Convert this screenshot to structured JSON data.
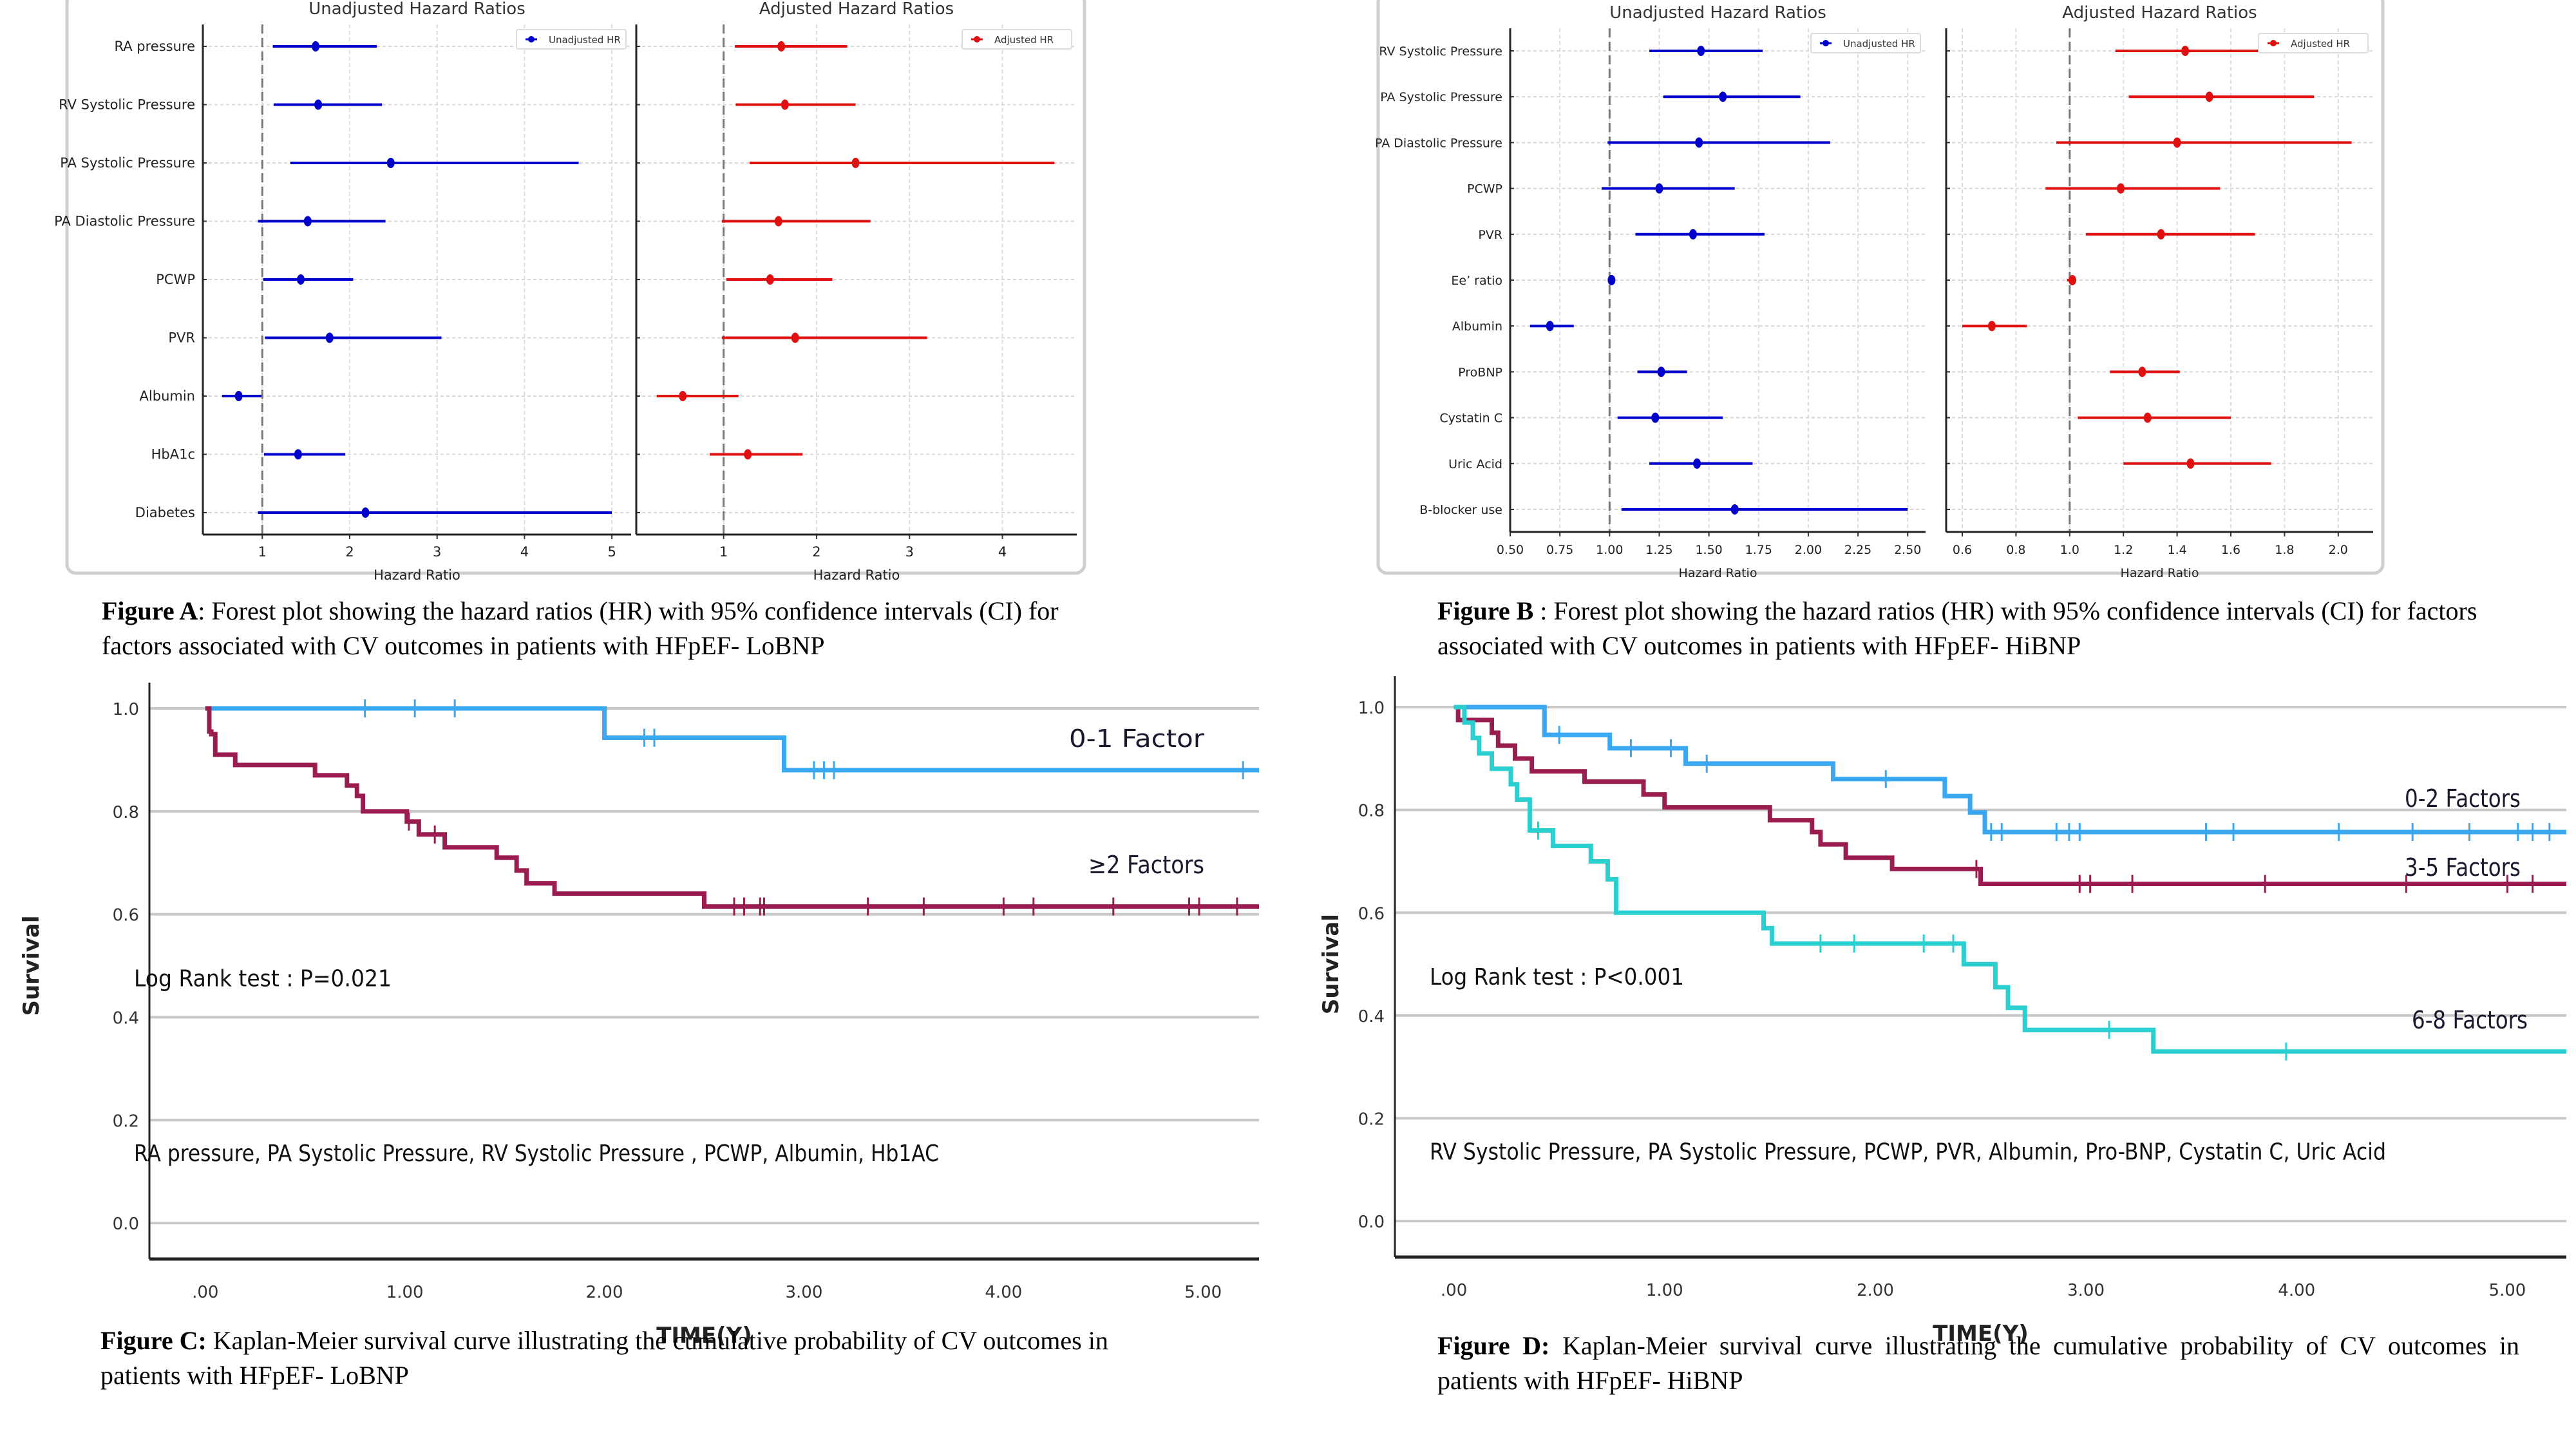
{
  "captions": {
    "A": {
      "label": "Figure A",
      "text": ": Forest plot showing the hazard ratios (HR) with 95% confidence intervals (CI) for factors associated with CV outcomes  in patients with HFpEF- LoBNP"
    },
    "B": {
      "label": "Figure B",
      "text": " : Forest plot showing the hazard ratios (HR) with 95% confidence intervals (CI) for factors associated with CV outcomes  in patients with HFpEF- HiBNP"
    },
    "C": {
      "label": "Figure C:",
      "text": " Kaplan-Meier survival curve illustrating the cumulative probability of CV outcomes in patients with HFpEF- LoBNP"
    },
    "D": {
      "label": "Figure D:",
      "text": " Kaplan-Meier survival curve illustrating the cumulative probability of CV outcomes in patients with HFpEF- HiBNP"
    }
  },
  "colors": {
    "unadjusted": "#0000cc",
    "adjusted": "#e01010",
    "blue_curve": "#3aa8f0",
    "maroon_curve": "#9b1c4e",
    "teal_curve": "#2ccfcf"
  },
  "chart_data": [
    {
      "id": "A-unadjusted",
      "type": "forest",
      "title": "Unadjusted Hazard Ratios",
      "xlabel": "Hazard Ratio",
      "legend": "Unadjusted HR",
      "legend_position": "top-right",
      "xlim": [
        0.32,
        5.22
      ],
      "xticks": [
        "1",
        "2",
        "3",
        "4",
        "5"
      ],
      "xtick_values": [
        1,
        2,
        3,
        4,
        5
      ],
      "reference_line": 1,
      "categories": [
        "RA pressure",
        "RV Systolic Pressure",
        "PA Systolic Pressure",
        "PA Diastolic Pressure",
        "PCWP",
        "PVR",
        "Albumin",
        "HbA1c",
        "Diabetes"
      ],
      "hr": [
        1.61,
        1.64,
        2.47,
        1.52,
        1.44,
        1.77,
        0.73,
        1.41,
        2.18
      ],
      "lower": [
        1.12,
        1.13,
        1.32,
        0.95,
        1.01,
        1.03,
        0.54,
        1.02,
        0.95
      ],
      "upper": [
        2.31,
        2.37,
        4.62,
        2.41,
        2.04,
        3.05,
        0.99,
        1.95,
        5.0
      ]
    },
    {
      "id": "A-adjusted",
      "type": "forest",
      "title": "Adjusted Hazard Ratios",
      "xlabel": "Hazard Ratio",
      "legend": "Adjusted HR",
      "legend_position": "top-right",
      "xlim": [
        0.06,
        4.8
      ],
      "xticks": [
        "1",
        "2",
        "3",
        "4"
      ],
      "xtick_values": [
        1,
        2,
        3,
        4
      ],
      "reference_line": 1,
      "categories": [
        "RA pressure",
        "RV Systolic Pressure",
        "PA Systolic Pressure",
        "PA Diastolic Pressure",
        "PCWP",
        "PVR",
        "Albumin",
        "HbA1c",
        "Diabetes"
      ],
      "hr": [
        1.62,
        1.66,
        2.42,
        1.59,
        1.5,
        1.77,
        0.56,
        1.26,
        null
      ],
      "lower": [
        1.12,
        1.13,
        1.28,
        0.98,
        1.03,
        0.98,
        0.28,
        0.85,
        null
      ],
      "upper": [
        2.33,
        2.42,
        4.56,
        2.58,
        2.17,
        3.19,
        1.16,
        1.85,
        null
      ]
    },
    {
      "id": "B-unadjusted",
      "type": "forest",
      "title": "Unadjusted Hazard Ratios",
      "xlabel": "Hazard Ratio",
      "legend": "Unadjusted HR",
      "legend_position": "top-right",
      "xlim": [
        0.5,
        2.59
      ],
      "xticks": [
        "0.50",
        "0.75",
        "1.00",
        "1.25",
        "1.50",
        "1.75",
        "2.00",
        "2.25",
        "2.50"
      ],
      "xtick_values": [
        0.5,
        0.75,
        1.0,
        1.25,
        1.5,
        1.75,
        2.0,
        2.25,
        2.5
      ],
      "reference_line": 1,
      "categories": [
        "RV Systolic Pressure",
        "PA Systolic Pressure",
        "PA Diastolic Pressure",
        "PCWP",
        "PVR",
        "Ee’ ratio",
        "Albumin",
        "ProBNP",
        "Cystatin C",
        "Uric Acid",
        "B-blocker use"
      ],
      "hr": [
        1.46,
        1.57,
        1.45,
        1.25,
        1.42,
        1.01,
        0.7,
        1.26,
        1.23,
        1.44,
        1.63
      ],
      "lower": [
        1.2,
        1.27,
        0.99,
        0.96,
        1.13,
        1.0,
        0.6,
        1.14,
        1.04,
        1.2,
        1.06
      ],
      "upper": [
        1.77,
        1.96,
        2.11,
        1.63,
        1.78,
        1.02,
        0.82,
        1.39,
        1.57,
        1.72,
        2.5
      ]
    },
    {
      "id": "B-adjusted",
      "type": "forest",
      "title": "Adjusted Hazard Ratios",
      "xlabel": "Hazard Ratio",
      "legend": "Adjusted HR",
      "legend_position": "top-right",
      "xlim": [
        0.54,
        2.13
      ],
      "xticks": [
        "0.6",
        "0.8",
        "1.0",
        "1.2",
        "1.4",
        "1.6",
        "1.8",
        "2.0"
      ],
      "xtick_values": [
        0.6,
        0.8,
        1.0,
        1.2,
        1.4,
        1.6,
        1.8,
        2.0
      ],
      "reference_line": 1,
      "categories": [
        "RV Systolic Pressure",
        "PA Systolic Pressure",
        "PA Diastolic Pressure",
        "PCWP",
        "PVR",
        "Ee’ ratio",
        "Albumin",
        "ProBNP",
        "Cystatin C",
        "Uric Acid",
        "B-blocker use"
      ],
      "hr": [
        1.43,
        1.52,
        1.4,
        1.19,
        1.34,
        1.01,
        0.71,
        1.27,
        1.29,
        1.45,
        null
      ],
      "lower": [
        1.17,
        1.22,
        0.95,
        0.91,
        1.06,
        0.99,
        0.6,
        1.15,
        1.03,
        1.2,
        null
      ],
      "upper": [
        1.74,
        1.91,
        2.05,
        1.56,
        1.69,
        1.02,
        0.84,
        1.41,
        1.6,
        1.75,
        null
      ]
    },
    {
      "id": "C",
      "type": "line",
      "subtype": "kaplan-meier",
      "xlabel": "TIME(Y)",
      "ylabel": "Survival",
      "xlim": [
        -0.28,
        5.28
      ],
      "ylim": [
        -0.07,
        1.0
      ],
      "xticks": [
        ".00",
        "1.00",
        "2.00",
        "3.00",
        "4.00",
        "5.00"
      ],
      "yticks": [
        "0.0",
        "0.2",
        "0.4",
        "0.6",
        "0.8",
        "1.0"
      ],
      "grid": "horizontal",
      "annotations": [
        "Log Rank test : P=0.021",
        "RA pressure, PA Systolic Pressure, RV Systolic Pressure , PCWP, Albumin, Hb1AC"
      ],
      "series": [
        {
          "name": "0-1 Factor",
          "color_key": "blue_curve",
          "steps": [
            [
              0,
              1.0
            ],
            [
              2.0,
              0.943
            ],
            [
              2.9,
              0.88
            ],
            [
              5.28,
              0.88
            ]
          ],
          "censored": [
            0.8,
            1.05,
            1.25,
            2.2,
            2.25,
            3.05,
            3.1,
            3.15,
            5.2
          ]
        },
        {
          "name": "≥2 Factors",
          "color_key": "maroon_curve",
          "steps": [
            [
              0,
              1.0
            ],
            [
              0.02,
              0.955
            ],
            [
              0.03,
              0.95
            ],
            [
              0.05,
              0.91
            ],
            [
              0.15,
              0.89
            ],
            [
              0.55,
              0.87
            ],
            [
              0.71,
              0.85
            ],
            [
              0.76,
              0.83
            ],
            [
              0.79,
              0.8
            ],
            [
              1.01,
              0.78
            ],
            [
              1.07,
              0.755
            ],
            [
              1.2,
              0.73
            ],
            [
              1.46,
              0.71
            ],
            [
              1.56,
              0.685
            ],
            [
              1.61,
              0.66
            ],
            [
              1.75,
              0.64
            ],
            [
              2.5,
              0.615
            ],
            [
              5.28,
              0.615
            ]
          ],
          "censored": [
            1.02,
            1.15,
            2.65,
            2.7,
            2.78,
            2.8,
            3.32,
            3.6,
            4.0,
            4.15,
            4.55,
            4.93,
            4.98,
            5.17
          ]
        }
      ]
    },
    {
      "id": "D",
      "type": "line",
      "subtype": "kaplan-meier",
      "xlabel": "TIME(Y)",
      "ylabel": "Survival",
      "xlim": [
        -0.28,
        5.28
      ],
      "ylim": [
        -0.07,
        1.0
      ],
      "xticks": [
        ".00",
        "1.00",
        "2.00",
        "3.00",
        "4.00",
        "5.00"
      ],
      "yticks": [
        "0.0",
        "0.2",
        "0.4",
        "0.6",
        "0.8",
        "1.0"
      ],
      "grid": "horizontal",
      "annotations": [
        "Log Rank test : P<0.001",
        "RV Systolic Pressure, PA Systolic Pressure, PCWP, PVR, Albumin, Pro-BNP, Cystatin C, Uric Acid"
      ],
      "series": [
        {
          "name": "0-2 Factors",
          "color_key": "blue_curve",
          "steps": [
            [
              0,
              1.0
            ],
            [
              0.43,
              0.946
            ],
            [
              0.74,
              0.92
            ],
            [
              1.1,
              0.89
            ],
            [
              1.8,
              0.86
            ],
            [
              2.33,
              0.827
            ],
            [
              2.45,
              0.795
            ],
            [
              2.52,
              0.757
            ],
            [
              5.28,
              0.757
            ]
          ],
          "censored": [
            0.5,
            0.84,
            1.2,
            1.03,
            2.05,
            2.55,
            2.6,
            2.86,
            2.92,
            2.97,
            3.57,
            3.7,
            4.2,
            4.55,
            4.82,
            5.05,
            5.12,
            5.2
          ]
        },
        {
          "name": "3-5 Factors",
          "color_key": "maroon_curve",
          "steps": [
            [
              0,
              1.0
            ],
            [
              0.02,
              0.975
            ],
            [
              0.18,
              0.95
            ],
            [
              0.21,
              0.925
            ],
            [
              0.29,
              0.9
            ],
            [
              0.37,
              0.875
            ],
            [
              0.62,
              0.855
            ],
            [
              0.9,
              0.83
            ],
            [
              1.0,
              0.805
            ],
            [
              1.5,
              0.78
            ],
            [
              1.7,
              0.757
            ],
            [
              1.74,
              0.733
            ],
            [
              1.86,
              0.707
            ],
            [
              2.08,
              0.685
            ],
            [
              2.5,
              0.656
            ],
            [
              5.28,
              0.656
            ]
          ],
          "censored": [
            2.48,
            2.97,
            3.02,
            3.22,
            3.85,
            4.52,
            5.0,
            5.12
          ]
        },
        {
          "name": "6-8 Factors",
          "color_key": "teal_curve",
          "steps": [
            [
              0,
              1.0
            ],
            [
              0.05,
              0.97
            ],
            [
              0.09,
              0.94
            ],
            [
              0.12,
              0.91
            ],
            [
              0.18,
              0.88
            ],
            [
              0.27,
              0.85
            ],
            [
              0.3,
              0.82
            ],
            [
              0.36,
              0.76
            ],
            [
              0.47,
              0.73
            ],
            [
              0.65,
              0.7
            ],
            [
              0.73,
              0.665
            ],
            [
              0.77,
              0.6
            ],
            [
              1.47,
              0.57
            ],
            [
              1.51,
              0.54
            ],
            [
              2.42,
              0.5
            ],
            [
              2.57,
              0.455
            ],
            [
              2.63,
              0.415
            ],
            [
              2.71,
              0.372
            ],
            [
              3.32,
              0.33
            ],
            [
              5.28,
              0.33
            ]
          ],
          "censored": [
            0.4,
            1.74,
            1.9,
            2.23,
            2.37,
            3.11,
            3.95
          ]
        }
      ]
    }
  ]
}
